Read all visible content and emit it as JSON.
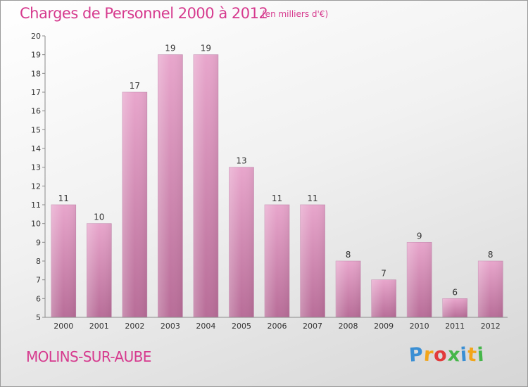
{
  "header": {
    "title": "Charges de Personnel 2000 à 2012",
    "subtitle": "(en milliers d'€)"
  },
  "footer": {
    "commune": "MOLINS-SUR-AUBE",
    "logo_letters": [
      "P",
      "r",
      "o",
      "x",
      "i",
      "t",
      "i"
    ],
    "logo_colors": [
      "#3a8fd4",
      "#f2a51a",
      "#e23b3b",
      "#45b649",
      "#3a8fd4",
      "#f2a51a",
      "#45b649"
    ]
  },
  "colors": {
    "accent": "#d63a8e",
    "bar_top": "#e8a6cc",
    "bar_bottom": "#b86d98"
  },
  "chart_data": {
    "type": "bar",
    "title": "Charges de Personnel 2000 à 2012",
    "subtitle": "(en milliers d'€)",
    "xlabel": "",
    "ylabel": "",
    "categories": [
      "2000",
      "2001",
      "2002",
      "2003",
      "2004",
      "2005",
      "2006",
      "2007",
      "2008",
      "2009",
      "2010",
      "2011",
      "2012"
    ],
    "values": [
      11,
      10,
      17,
      19,
      19,
      13,
      11,
      11,
      8,
      7,
      9,
      6,
      8
    ],
    "ylim": [
      5,
      20
    ],
    "yticks": [
      5,
      6,
      7,
      8,
      9,
      10,
      11,
      12,
      13,
      14,
      15,
      16,
      17,
      18,
      19,
      20
    ],
    "grid": false,
    "data_labels": true
  }
}
